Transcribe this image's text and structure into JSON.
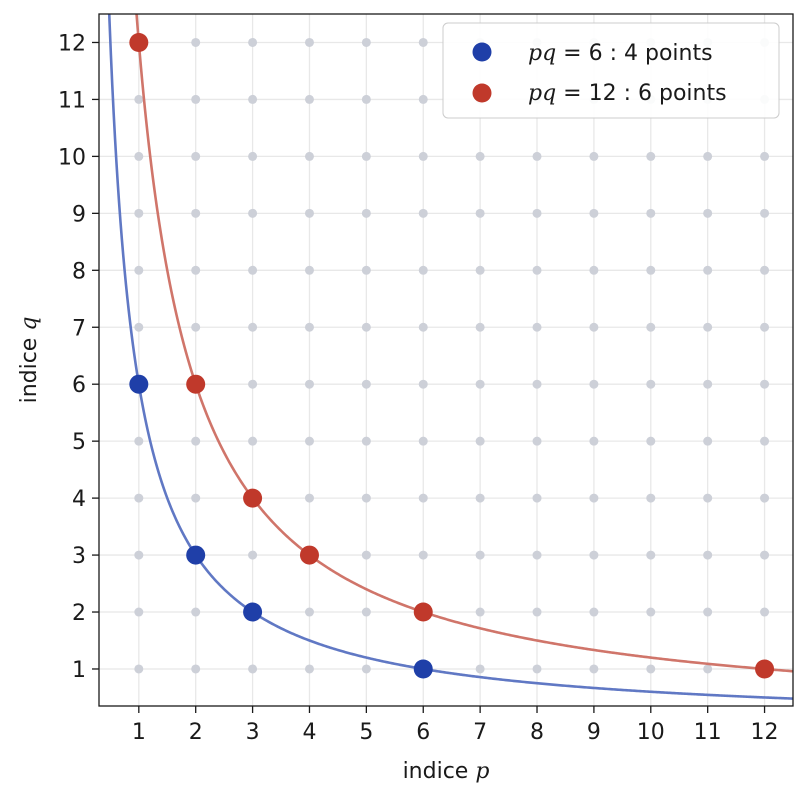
{
  "chart_data": {
    "type": "scatter",
    "xlabel": {
      "text": "indice ",
      "var": "p"
    },
    "ylabel": {
      "text": "indice ",
      "var": "q"
    },
    "xlim": [
      0.3,
      12.5
    ],
    "ylim": [
      0.35,
      12.5
    ],
    "xticks": [
      "1",
      "2",
      "3",
      "4",
      "5",
      "6",
      "7",
      "8",
      "9",
      "10",
      "11",
      "12"
    ],
    "yticks": [
      "1",
      "2",
      "3",
      "4",
      "5",
      "6",
      "7",
      "8",
      "9",
      "10",
      "11",
      "12"
    ],
    "grid": true,
    "background_lattice": {
      "x_range": [
        1,
        12
      ],
      "y_range": [
        1,
        12
      ],
      "color": "#cdd0d8"
    },
    "legend_position": "top-right",
    "series": [
      {
        "name": "6 : 4 points",
        "legend_prefix": "pq",
        "legend_eq": " = ",
        "product": 6,
        "color": "#1f3fa8",
        "curve_color": "#6078c4",
        "points": [
          [
            1,
            6
          ],
          [
            2,
            3
          ],
          [
            3,
            2
          ],
          [
            6,
            1
          ]
        ]
      },
      {
        "name": "12 : 6 points",
        "legend_prefix": "pq",
        "legend_eq": " = ",
        "product": 12,
        "color": "#c0392b",
        "curve_color": "#d0756a",
        "points": [
          [
            1,
            12
          ],
          [
            2,
            6
          ],
          [
            3,
            4
          ],
          [
            4,
            3
          ],
          [
            6,
            2
          ],
          [
            12,
            1
          ]
        ]
      }
    ]
  }
}
